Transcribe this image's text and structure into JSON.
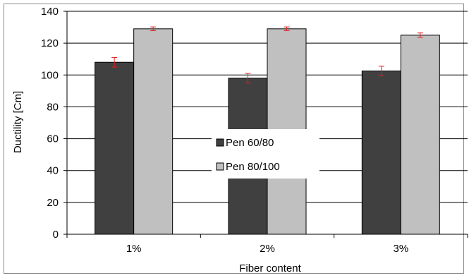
{
  "chart_data": {
    "type": "bar",
    "categories": [
      "1%",
      "2%",
      "3%"
    ],
    "series": [
      {
        "name": "Pen 60/80",
        "color": "#404040",
        "values": [
          108,
          98,
          102.5
        ],
        "errors": [
          3,
          3,
          3
        ]
      },
      {
        "name": "Pen 80/100",
        "color": "#c0c0c0",
        "values": [
          129,
          129,
          125
        ],
        "errors": [
          1.2,
          1.2,
          1.4
        ]
      }
    ],
    "title": "",
    "xlabel": "Fiber content",
    "ylabel": "Ductility [Cm]",
    "ylim": [
      0,
      140
    ],
    "ytick_step": 20,
    "grid": "horizontal",
    "legend_position": "center",
    "error_bar_color": "#e02020"
  }
}
